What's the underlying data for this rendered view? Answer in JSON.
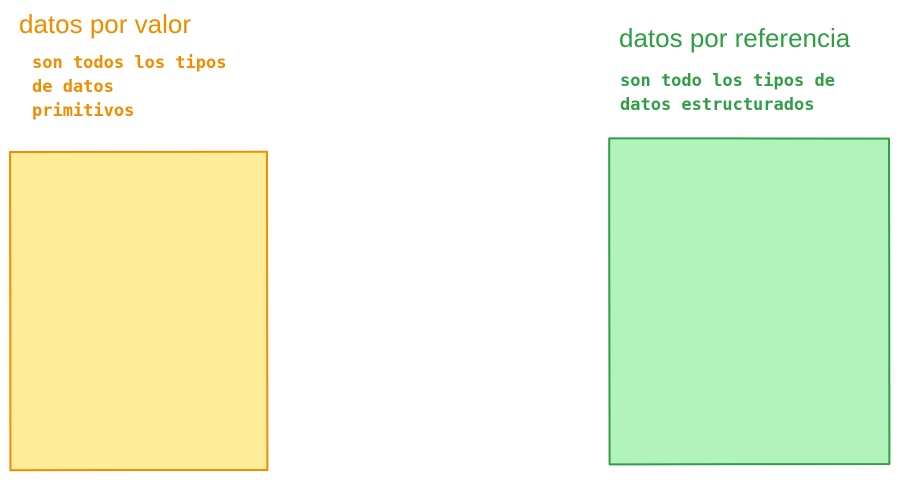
{
  "colors": {
    "left_stroke": "#f08c00",
    "left_fill": "#ffec99",
    "right_stroke": "#2f9e44",
    "right_fill": "#b2f2bb"
  },
  "left": {
    "heading": "datos por valor",
    "description": "son todos los tipos\nde datos\nprimitivos"
  },
  "right": {
    "heading": "datos por referencia",
    "description": "son todo los tipos de\ndatos estructurados"
  }
}
